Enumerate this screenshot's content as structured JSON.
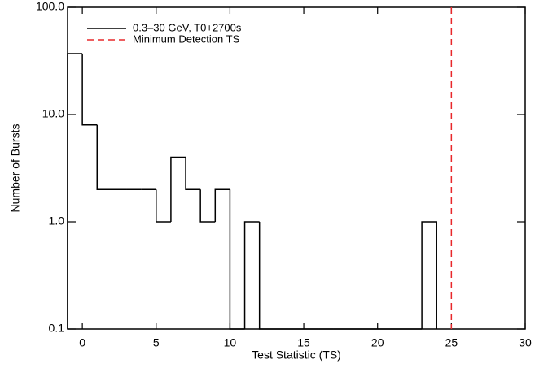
{
  "chart_data": {
    "type": "histogram",
    "x_label": "Test Statistic (TS)",
    "y_label": "Number of Bursts",
    "bins": [
      -1,
      0,
      1,
      2,
      3,
      4,
      5,
      6,
      7,
      8,
      9,
      10,
      11,
      12,
      13,
      14,
      15,
      16,
      17,
      18,
      19,
      20,
      21,
      22,
      23,
      24
    ],
    "series": [
      {
        "name": "0.3–30 GeV, T0+2700s",
        "color": "#000000",
        "values": [
          37,
          8,
          2,
          2,
          2,
          2,
          1,
          4,
          2,
          1,
          2,
          0,
          1,
          0,
          0,
          0,
          0,
          0,
          0,
          0,
          0,
          0,
          0,
          0,
          1
        ]
      }
    ],
    "threshold": {
      "name": "Minimum Detection TS",
      "value": 25,
      "color": "#e8282b",
      "dashed": true
    },
    "xlim": [
      -1,
      30
    ],
    "xticks": [
      0,
      5,
      10,
      15,
      20,
      25,
      30
    ],
    "ylim": [
      0.1,
      100
    ],
    "yticks": [
      0.1,
      {
        "value": 1,
        "label": "1.0"
      },
      {
        "value": 10,
        "label": "10.0"
      },
      {
        "value": 100,
        "label": "100.0"
      }
    ],
    "log_y": true,
    "legend": "upper-left"
  }
}
